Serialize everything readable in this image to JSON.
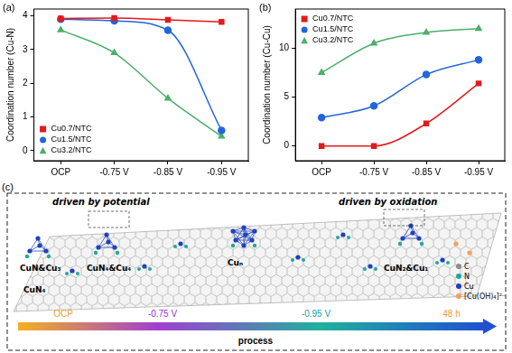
{
  "chart_data": [
    {
      "type": "line",
      "label": "(a)",
      "y_label": "Coordination number (Cu-N)",
      "categories": [
        "OCP",
        "-0.75 V",
        "-0.85 V",
        "-0.95 V"
      ],
      "series": [
        {
          "name": "Cu0.7/NTC",
          "color": "#e31a1c",
          "marker": "square",
          "line_style": "smooth",
          "values": [
            3.92,
            3.93,
            3.88,
            3.82
          ]
        },
        {
          "name": "Cu1.5/NTC",
          "color": "#2266dd",
          "marker": "circle",
          "line_style": "smooth",
          "values": [
            3.9,
            3.85,
            3.57,
            0.6
          ]
        },
        {
          "name": "Cu3.2/NTC",
          "color": "#4caf6a",
          "marker": "triangle",
          "line_style": "smooth",
          "values": [
            3.58,
            2.9,
            1.55,
            0.42
          ]
        }
      ],
      "ylim": [
        -0.3,
        4.2
      ],
      "yticks": [
        0,
        1,
        2,
        3,
        4
      ],
      "grid": false,
      "legend": "lower left"
    },
    {
      "type": "line",
      "label": "(b)",
      "y_label": "Coordination number (Cu-Cu)",
      "categories": [
        "OCP",
        "-0.75 V",
        "-0.85 V",
        "-0.95 V"
      ],
      "series": [
        {
          "name": "Cu0.7/NTC",
          "color": "#e31a1c",
          "marker": "square",
          "line_style": "smooth",
          "values": [
            0,
            0,
            2.3,
            6.4
          ]
        },
        {
          "name": "Cu1.5/NTC",
          "color": "#2266dd",
          "marker": "circle",
          "line_style": "smooth",
          "values": [
            2.9,
            4.1,
            7.3,
            8.8
          ]
        },
        {
          "name": "Cu3.2/NTC",
          "color": "#4caf6a",
          "marker": "triangle",
          "line_style": "smooth",
          "values": [
            7.5,
            10.5,
            11.6,
            12.0
          ]
        }
      ],
      "ylim": [
        -1.5,
        14
      ],
      "yticks": [
        0,
        5,
        10
      ],
      "grid": false,
      "legend": "upper left"
    }
  ],
  "diagram": {
    "label": "(c)",
    "annotations": [
      "driven by potential",
      "driven by oxidation"
    ],
    "species": [
      "CuN&Cu₃",
      "CuN₄&Cu₄",
      "CuN₄",
      "Cuₙ",
      "CuN₂&Cu₁"
    ],
    "stages": [
      {
        "text": "OCP",
        "color": "#f0a020"
      },
      {
        "text": "-0.75 V",
        "color": "#9b30d0"
      },
      {
        "text": "-0.95 V",
        "color": "#20a0a0"
      },
      {
        "text": "48 h",
        "color": "#f0a020"
      }
    ],
    "arrow_label": "process",
    "key_items": [
      {
        "text": "C",
        "color": "#8c8c8c"
      },
      {
        "text": "N",
        "color": "#20a8a0"
      },
      {
        "text": "Cu",
        "color": "#2040c0"
      },
      {
        "text": "[Cu(OH)₄]²⁻",
        "color": "#f0a060"
      }
    ]
  }
}
